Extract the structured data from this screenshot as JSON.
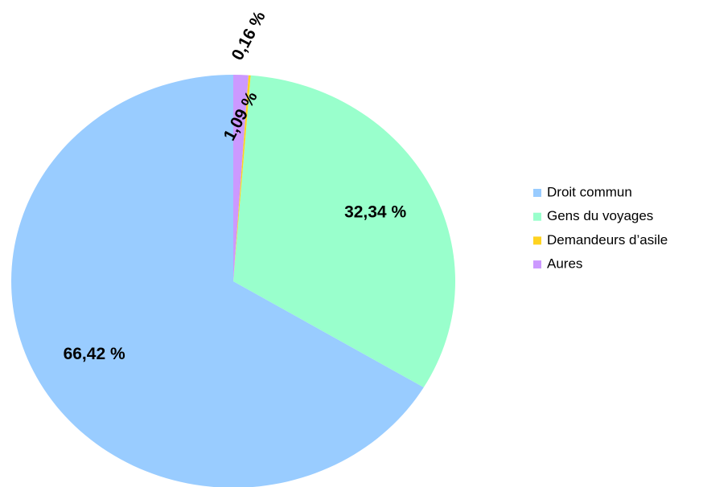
{
  "chart_data": {
    "type": "pie",
    "categories": [
      "Droit commun",
      "Gens du voyages",
      "Demandeurs d’asile",
      "Aures"
    ],
    "values": [
      66.42,
      32.34,
      0.16,
      1.09
    ],
    "value_labels": [
      "66,42 %",
      "32,34 %",
      "0,16 %",
      "1,09 %"
    ],
    "colors": [
      "#99ccff",
      "#99ffcc",
      "#ffd320",
      "#cc99ff"
    ],
    "legend": "right"
  }
}
